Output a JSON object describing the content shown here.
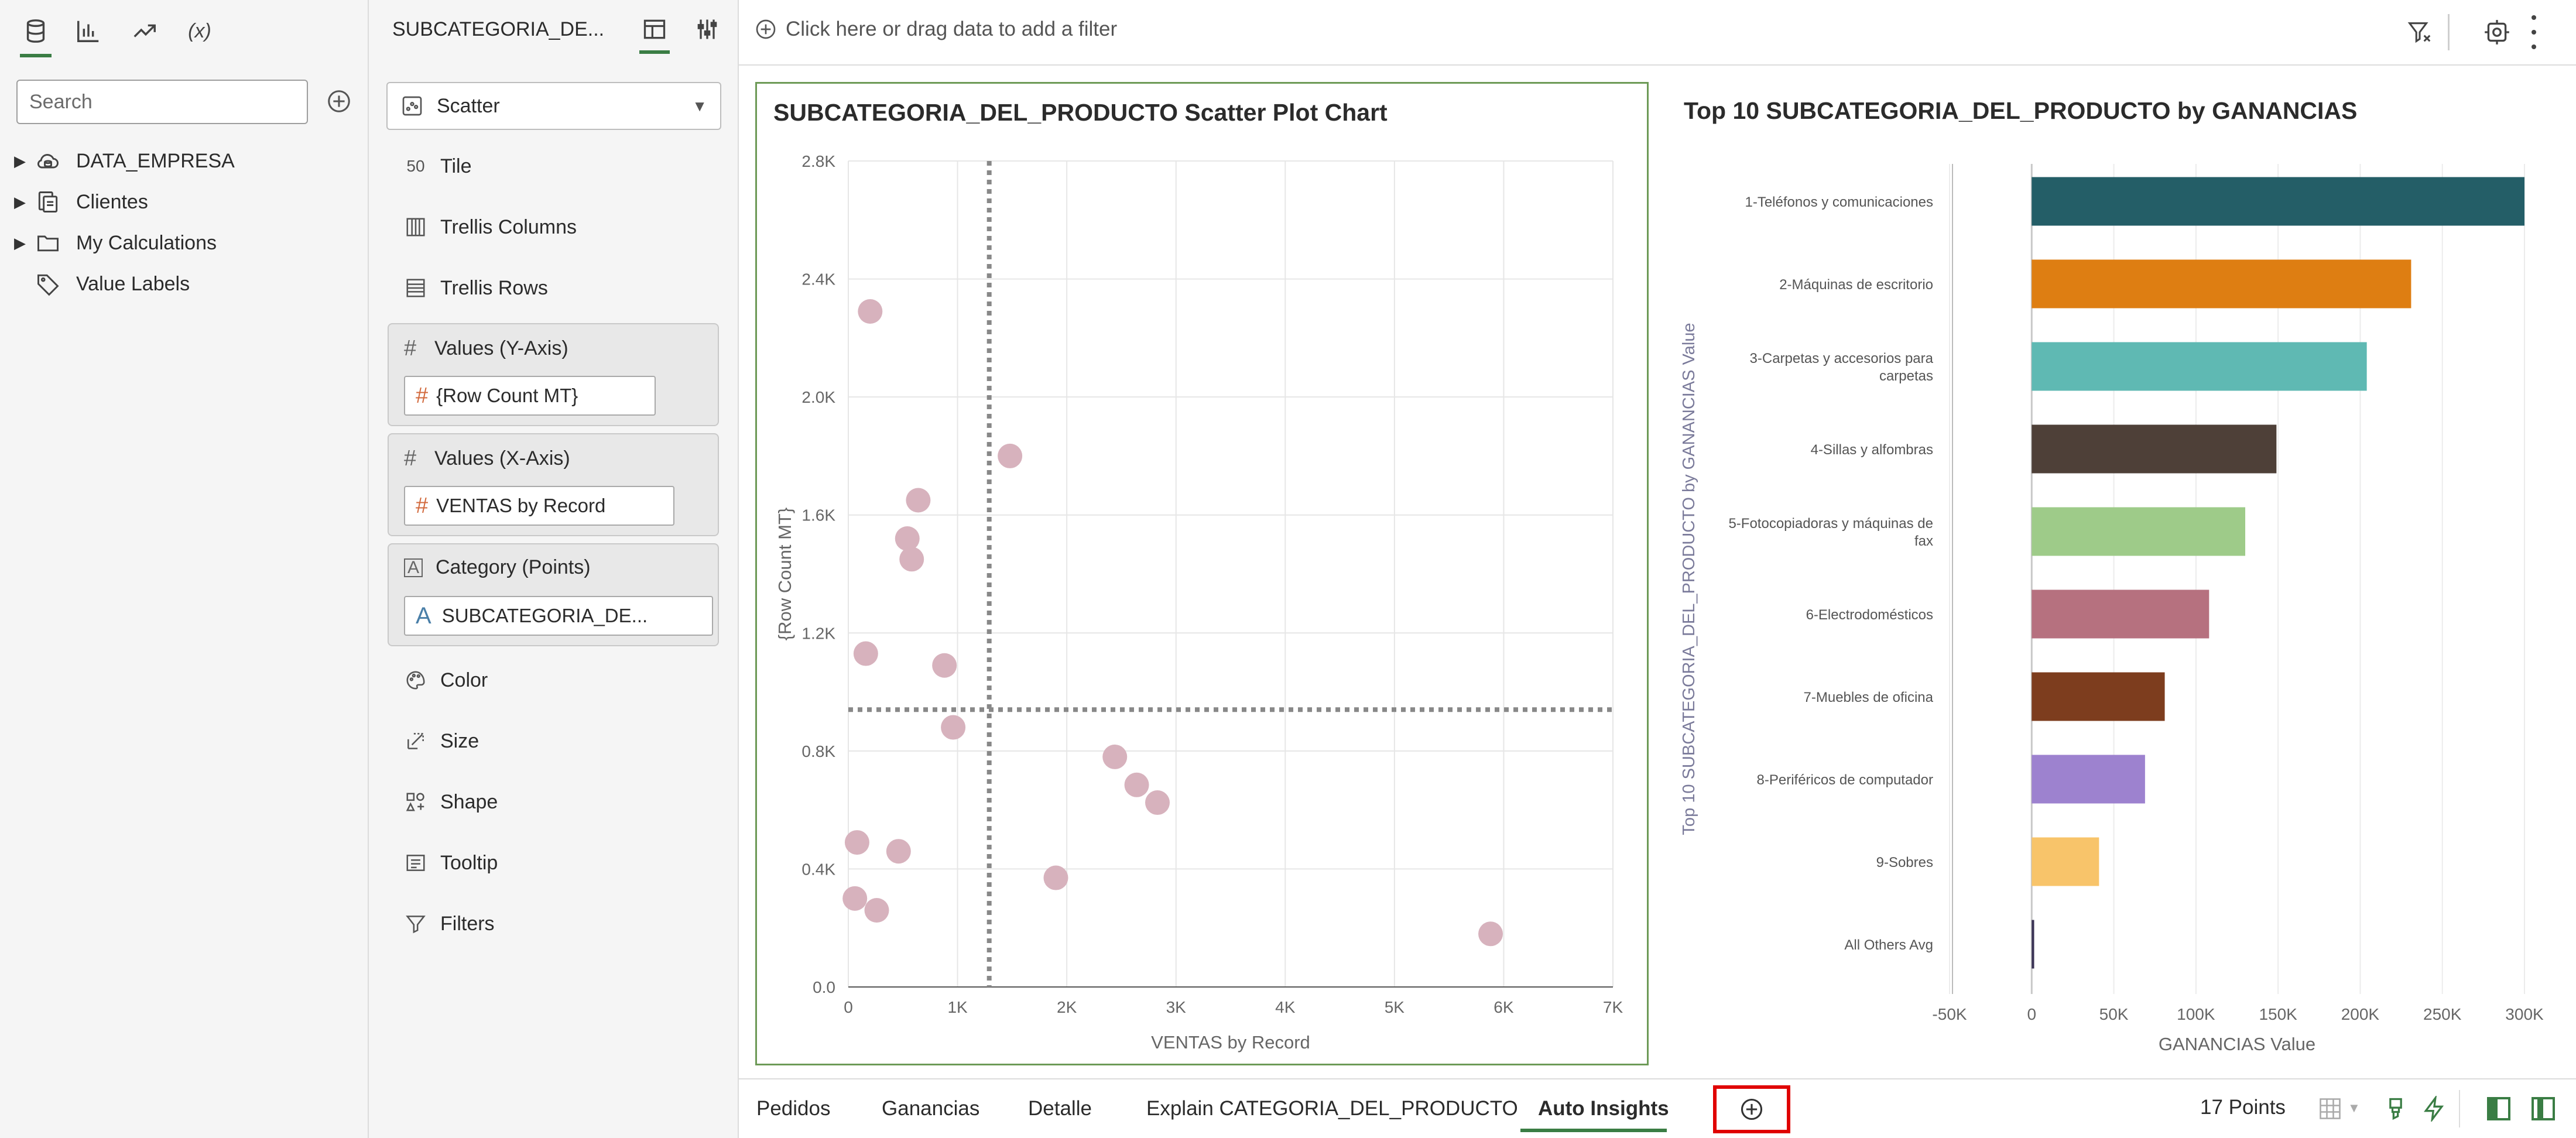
{
  "left_panel": {
    "search_placeholder": "Search",
    "tree": [
      {
        "label": "DATA_EMPRESA",
        "icon": "cloud-database-icon",
        "expandable": true
      },
      {
        "label": "Clientes",
        "icon": "dataset-icon",
        "expandable": true
      },
      {
        "label": "My Calculations",
        "icon": "folder-icon",
        "expandable": true
      },
      {
        "label": "Value Labels",
        "icon": "tag-icon",
        "expandable": false
      }
    ],
    "tabs": [
      "data-icon",
      "visualizations-icon",
      "analytics-icon",
      "calculations-icon"
    ],
    "calc_tab_label": "(x)"
  },
  "grammar_panel": {
    "viz_name": "SUBCATEGORIA_DE...",
    "viz_type": "Scatter",
    "rows_top": [
      {
        "label": "Tile",
        "icon": "tile-icon",
        "glyph": "50"
      },
      {
        "label": "Trellis Columns",
        "icon": "trellis-columns-icon"
      },
      {
        "label": "Trellis Rows",
        "icon": "trellis-rows-icon"
      }
    ],
    "zones": [
      {
        "title": "Values (Y-Axis)",
        "pill": "{Row Count MT}",
        "pill_kind": "measure"
      },
      {
        "title": "Values (X-Axis)",
        "pill": "VENTAS by Record",
        "pill_kind": "measure"
      },
      {
        "title": "Category (Points)",
        "pill": "SUBCATEGORIA_DE...",
        "pill_kind": "attribute"
      }
    ],
    "rows_bottom": [
      {
        "label": "Color",
        "icon": "palette-icon"
      },
      {
        "label": "Size",
        "icon": "size-icon"
      },
      {
        "label": "Shape",
        "icon": "shape-icon"
      },
      {
        "label": "Tooltip",
        "icon": "tooltip-icon"
      },
      {
        "label": "Filters",
        "icon": "filter-icon"
      }
    ]
  },
  "filter_bar": {
    "placeholder": "Click here or drag data to add a filter"
  },
  "chart_data": [
    {
      "type": "scatter",
      "title": "SUBCATEGORIA_DEL_PRODUCTO Scatter Plot Chart",
      "xlabel": "VENTAS by Record",
      "ylabel": "{Row Count MT}",
      "xlim": [
        0,
        7000
      ],
      "ylim": [
        0,
        2800
      ],
      "x_ticks": [
        0,
        1000,
        2000,
        3000,
        4000,
        5000,
        6000,
        7000
      ],
      "x_tick_labels": [
        "0",
        "1K",
        "2K",
        "3K",
        "4K",
        "5K",
        "6K",
        "7K"
      ],
      "y_ticks": [
        0,
        400,
        800,
        1200,
        1600,
        2000,
        2400,
        2800
      ],
      "y_tick_labels": [
        "0.0",
        "0.4K",
        "0.8K",
        "1.2K",
        "1.6K",
        "2.0K",
        "2.4K",
        "2.8K"
      ],
      "grid": true,
      "reference_lines": {
        "x": 1290,
        "y": 940
      },
      "point_color": "#d7b2bd",
      "points": [
        {
          "x": 200,
          "y": 2290
        },
        {
          "x": 1480,
          "y": 1800
        },
        {
          "x": 640,
          "y": 1650
        },
        {
          "x": 540,
          "y": 1520
        },
        {
          "x": 580,
          "y": 1450
        },
        {
          "x": 160,
          "y": 1130
        },
        {
          "x": 880,
          "y": 1090
        },
        {
          "x": 960,
          "y": 880
        },
        {
          "x": 2440,
          "y": 780
        },
        {
          "x": 2640,
          "y": 685
        },
        {
          "x": 2830,
          "y": 625
        },
        {
          "x": 80,
          "y": 490
        },
        {
          "x": 460,
          "y": 460
        },
        {
          "x": 1900,
          "y": 370
        },
        {
          "x": 60,
          "y": 300
        },
        {
          "x": 260,
          "y": 260
        },
        {
          "x": 5880,
          "y": 180
        }
      ]
    },
    {
      "type": "bar",
      "orientation": "horizontal",
      "title": "Top 10 SUBCATEGORIA_DEL_PRODUCTO by GANANCIAS",
      "xlabel": "GANANCIAS Value",
      "ylabel": "Top 10 SUBCATEGORIA_DEL_PRODUCTO by GANANCIAS Value",
      "xlim": [
        -50000,
        300000
      ],
      "x_ticks": [
        -50000,
        0,
        50000,
        100000,
        150000,
        200000,
        250000,
        300000
      ],
      "x_tick_labels": [
        "-50K",
        "0",
        "50K",
        "100K",
        "150K",
        "200K",
        "250K",
        "300K"
      ],
      "categories": [
        [
          "1-Teléfonos y comunicaciones"
        ],
        [
          "2-Máquinas de escritorio"
        ],
        [
          "3-Carpetas y accesorios para",
          "carpetas"
        ],
        [
          "4-Sillas y alfombras"
        ],
        [
          "5-Fotocopiadoras y máquinas de",
          "fax"
        ],
        [
          "6-Electrodomésticos"
        ],
        [
          "7-Muebles de oficina"
        ],
        [
          "8-Periféricos de computador"
        ],
        [
          "9-Sobres"
        ],
        [
          "All Others Avg"
        ]
      ],
      "values": [
        300000,
        231000,
        204000,
        149000,
        130000,
        108000,
        81000,
        69000,
        41000,
        1500
      ],
      "colors": [
        "#245e67",
        "#de7e12",
        "#5fb9b3",
        "#4e4038",
        "#9ecb89",
        "#b6717f",
        "#7d3d1e",
        "#9d82cf",
        "#f8c46a",
        "#3b3355"
      ]
    }
  ],
  "tabs": [
    {
      "label": "Pedidos",
      "active": false
    },
    {
      "label": "Ganancias",
      "active": false
    },
    {
      "label": "Detalle",
      "active": false
    },
    {
      "label": "Explain CATEGORIA_DEL_PRODUCTO",
      "active": false
    },
    {
      "label": "Auto Insights",
      "active": true
    }
  ],
  "status": {
    "points": "17 Points"
  },
  "colors": {
    "accent_green": "#3a7d44",
    "highlight_red": "#e00000",
    "scatter_point": "#d7b2bd"
  }
}
